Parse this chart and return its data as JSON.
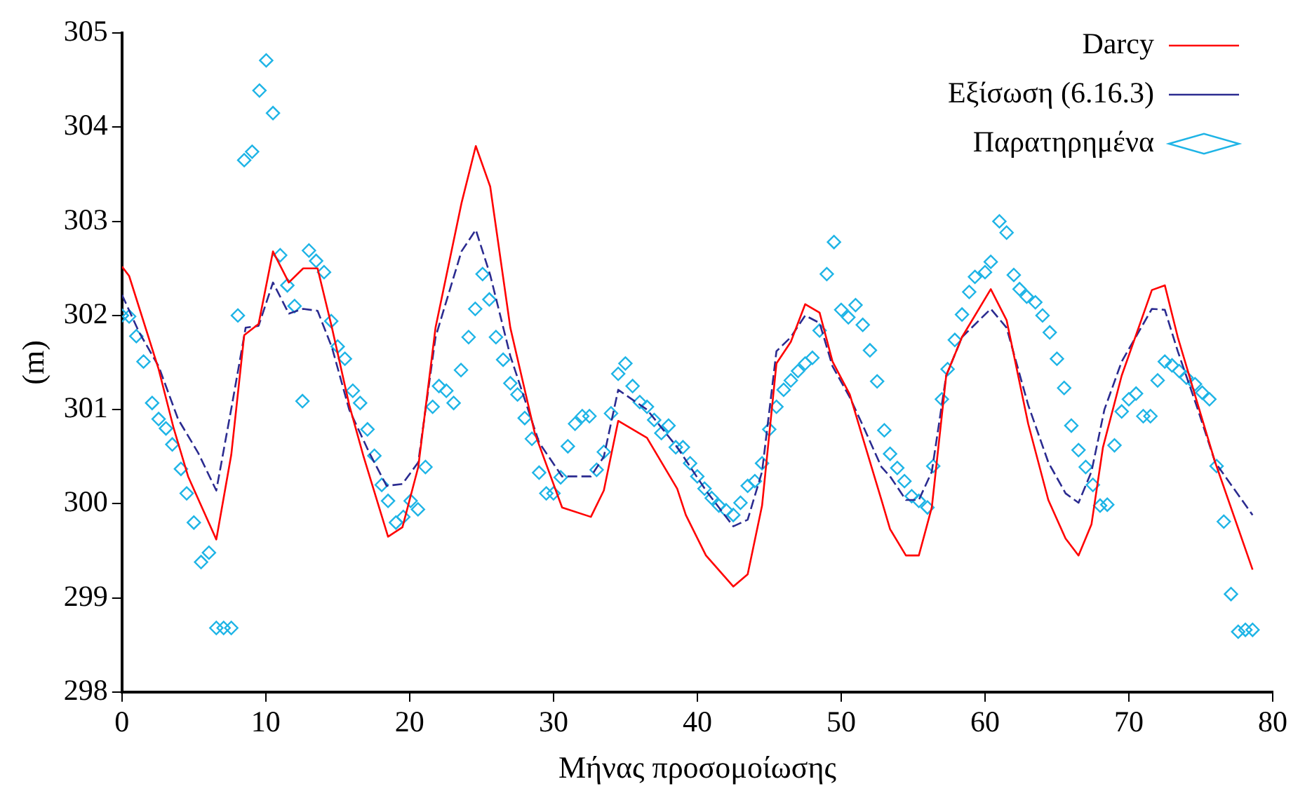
{
  "chart_data": {
    "type": "line",
    "xlabel": "Μήνας προσομοίωσης",
    "ylabel": "(m)",
    "xlim": [
      0,
      80
    ],
    "xticks": [
      0,
      10,
      20,
      30,
      40,
      50,
      60,
      70,
      80
    ],
    "ylim": [
      298,
      305
    ],
    "yticks": [
      298,
      299,
      300,
      301,
      302,
      303,
      304,
      305
    ],
    "grid": false,
    "legend": "top right",
    "series": [
      {
        "name": "Darcy",
        "type": "line",
        "color": "#ff0000",
        "line_style": "solid",
        "x": [
          0,
          0.5,
          2.55,
          3.6,
          4.6,
          6.56,
          7.6,
          8.5,
          9.5,
          10.5,
          11.6,
          12.6,
          13.6,
          14.6,
          15.8,
          16.8,
          18.5,
          19.5,
          20.6,
          21.8,
          23.6,
          24.6,
          25.6,
          27.0,
          28.7,
          30.6,
          32.6,
          33.5,
          34.5,
          36.5,
          38.6,
          39.2,
          40.6,
          42.5,
          43.5,
          44.5,
          45.5,
          46.5,
          47.5,
          48.5,
          49.4,
          50.6,
          51.6,
          52.8,
          53.4,
          54.5,
          55.4,
          56.3,
          57.3,
          58.4,
          60.4,
          61.5,
          63.0,
          64.4,
          65.6,
          66.5,
          67.4,
          68.2,
          69.5,
          71.6,
          72.5,
          73.4,
          74.8,
          76.0,
          78.6
        ],
        "values": [
          302.52,
          302.42,
          301.43,
          300.8,
          300.29,
          299.62,
          300.52,
          301.79,
          301.91,
          302.68,
          302.35,
          302.5,
          302.5,
          301.87,
          301.05,
          300.5,
          299.65,
          299.75,
          300.39,
          301.87,
          303.19,
          303.8,
          303.37,
          301.87,
          300.75,
          299.96,
          299.86,
          300.14,
          300.88,
          300.7,
          300.16,
          299.88,
          299.45,
          299.12,
          299.25,
          299.98,
          301.49,
          301.72,
          302.12,
          302.03,
          301.51,
          301.16,
          300.65,
          300.04,
          299.73,
          299.45,
          299.45,
          299.96,
          301.36,
          301.77,
          302.28,
          301.95,
          300.85,
          300.04,
          299.63,
          299.45,
          299.78,
          300.6,
          301.36,
          302.27,
          302.32,
          301.77,
          301.05,
          300.44,
          299.3
        ]
      },
      {
        "name": "Εξίσωση (6.16.3)",
        "type": "line",
        "color": "#2b2b90",
        "line_style": "dashed",
        "x": [
          0,
          1.2,
          2.55,
          3.9,
          5.3,
          6.56,
          7.65,
          8.6,
          9.5,
          10.5,
          11.6,
          12.6,
          13.6,
          14.6,
          15.8,
          17.2,
          18.4,
          19.5,
          20.6,
          21.8,
          23.6,
          24.6,
          25.6,
          27.0,
          29.0,
          30.6,
          32.6,
          33.5,
          34.5,
          36.5,
          38.6,
          40.6,
          42.5,
          43.5,
          44.5,
          45.5,
          46.5,
          47.5,
          48.5,
          49.4,
          50.6,
          51.6,
          52.8,
          53.4,
          54.5,
          55.4,
          56.3,
          57.3,
          58.4,
          60.4,
          61.5,
          63.0,
          64.4,
          65.6,
          66.5,
          67.4,
          68.3,
          69.5,
          71.6,
          72.5,
          73.4,
          74.8,
          76.0,
          78.6
        ],
        "values": [
          302.22,
          301.82,
          301.46,
          300.9,
          300.54,
          300.14,
          301.05,
          301.87,
          301.89,
          302.35,
          302.02,
          302.07,
          302.05,
          301.66,
          301.0,
          300.54,
          300.19,
          300.21,
          300.44,
          301.77,
          302.68,
          302.91,
          302.43,
          301.57,
          300.65,
          300.29,
          300.29,
          300.5,
          301.21,
          301.0,
          300.6,
          300.14,
          299.76,
          299.83,
          300.34,
          301.62,
          301.77,
          302.0,
          301.92,
          301.46,
          301.13,
          300.8,
          300.39,
          300.29,
          300.04,
          300.04,
          300.34,
          301.36,
          301.77,
          302.07,
          301.87,
          301.05,
          300.44,
          300.11,
          300.01,
          300.34,
          301.0,
          301.51,
          302.07,
          302.06,
          301.62,
          301.0,
          300.44,
          299.88
        ]
      },
      {
        "name": "Παρατηρημένα",
        "type": "scatter",
        "color": "#1eb4e6",
        "marker": "diamond",
        "x": [
          0,
          0.5,
          1.0,
          1.5,
          2.1,
          2.55,
          3.06,
          3.5,
          4.1,
          4.5,
          5.0,
          5.5,
          6.05,
          6.56,
          7.07,
          7.6,
          8.06,
          8.5,
          9.05,
          9.56,
          10.03,
          10.5,
          11.0,
          11.5,
          12.0,
          12.55,
          13.0,
          13.5,
          14.05,
          14.55,
          15.0,
          15.5,
          16.05,
          16.56,
          17.07,
          17.55,
          18.06,
          18.5,
          19.05,
          19.56,
          20.07,
          20.58,
          21.1,
          21.6,
          22.04,
          22.55,
          23.06,
          23.57,
          24.1,
          24.56,
          25.07,
          25.54,
          26.0,
          26.5,
          27.0,
          27.5,
          28.0,
          28.5,
          29.0,
          29.5,
          30.0,
          30.5,
          31.0,
          31.5,
          32.0,
          32.5,
          33.0,
          33.5,
          34.0,
          34.5,
          35.0,
          35.5,
          36.0,
          36.5,
          37.0,
          37.5,
          38.0,
          38.5,
          39.0,
          39.5,
          40.0,
          40.5,
          41.0,
          41.5,
          42.0,
          42.5,
          43.0,
          43.5,
          44.0,
          44.5,
          45.0,
          45.5,
          46.0,
          46.5,
          47.0,
          47.5,
          48.0,
          48.5,
          49.0,
          49.5,
          50.0,
          50.5,
          51.0,
          51.5,
          52.0,
          52.5,
          53.0,
          53.4,
          53.9,
          54.4,
          54.9,
          55.4,
          56.0,
          56.4,
          57.0,
          57.4,
          57.9,
          58.4,
          58.9,
          59.3,
          60.0,
          60.4,
          61.0,
          61.5,
          62.0,
          62.4,
          62.9,
          63.5,
          64.0,
          64.5,
          65.0,
          65.5,
          66.0,
          66.5,
          67.0,
          67.5,
          68.0,
          68.5,
          69.0,
          69.5,
          70.0,
          70.5,
          71.0,
          71.5,
          72.0,
          72.5,
          73.0,
          73.5,
          74.0,
          74.6,
          75.1,
          75.6,
          76.1,
          76.6,
          77.1,
          77.6,
          78.1,
          78.6
        ],
        "values": [
          302.0,
          301.99,
          301.78,
          301.51,
          301.07,
          300.9,
          300.8,
          300.63,
          300.37,
          300.11,
          299.8,
          299.38,
          299.48,
          298.68,
          298.68,
          298.68,
          302.0,
          303.65,
          303.74,
          304.39,
          304.71,
          304.15,
          302.64,
          302.32,
          302.1,
          301.09,
          302.69,
          302.58,
          302.46,
          301.94,
          301.67,
          301.54,
          301.2,
          301.07,
          300.79,
          300.51,
          300.2,
          300.03,
          299.8,
          299.86,
          300.03,
          299.94,
          300.39,
          301.03,
          301.25,
          301.2,
          301.07,
          301.42,
          301.77,
          302.07,
          302.44,
          302.17,
          301.77,
          301.53,
          301.28,
          301.16,
          300.91,
          300.69,
          300.33,
          300.11,
          300.11,
          300.28,
          300.61,
          300.85,
          300.93,
          300.93,
          300.36,
          300.55,
          300.96,
          301.38,
          301.49,
          301.25,
          301.08,
          301.03,
          300.89,
          300.75,
          300.83,
          300.6,
          300.6,
          300.43,
          300.29,
          300.16,
          300.06,
          299.98,
          299.93,
          299.88,
          300.01,
          300.19,
          300.24,
          300.43,
          300.79,
          301.03,
          301.21,
          301.31,
          301.41,
          301.49,
          301.55,
          301.84,
          302.44,
          302.78,
          302.06,
          301.98,
          302.11,
          301.9,
          301.63,
          301.3,
          300.78,
          300.53,
          300.38,
          300.24,
          300.08,
          300.03,
          299.96,
          300.4,
          301.11,
          301.43,
          301.74,
          302.01,
          302.25,
          302.41,
          302.46,
          302.57,
          303.0,
          302.88,
          302.43,
          302.28,
          302.2,
          302.14,
          302.0,
          301.82,
          301.54,
          301.23,
          300.83,
          300.57,
          300.39,
          300.2,
          299.98,
          299.99,
          300.62,
          300.98,
          301.11,
          301.17,
          300.93,
          300.93,
          301.31,
          301.51,
          301.47,
          301.41,
          301.34,
          301.27,
          301.18,
          301.11,
          300.4,
          299.81,
          299.04,
          298.64,
          298.66,
          298.66
        ]
      }
    ]
  }
}
